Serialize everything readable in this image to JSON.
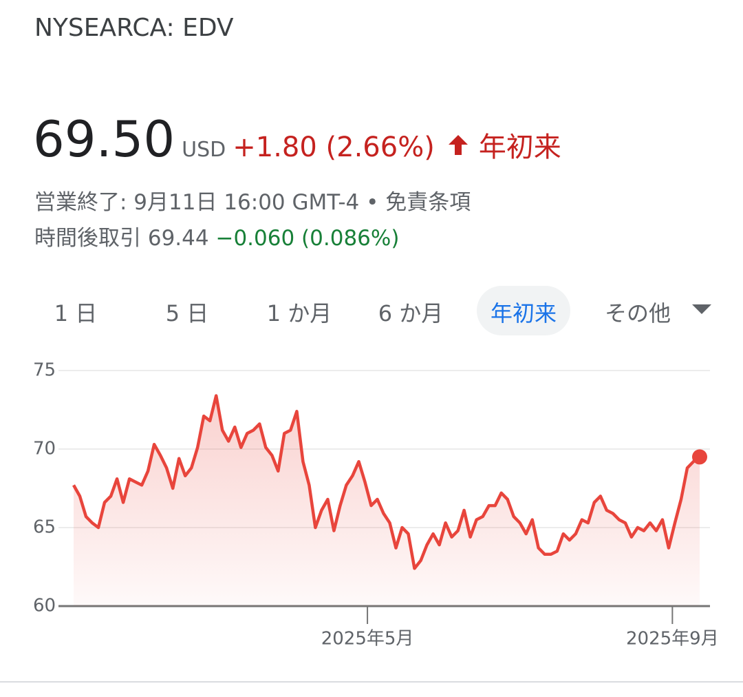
{
  "header": {
    "symbol": "NYSEARCA: EDV"
  },
  "quote": {
    "price": "69.50",
    "currency": "USD",
    "change": "+1.80 (2.66%)",
    "period": "年初来",
    "status": "営業終了: 9月11日 16:00 GMT-4",
    "separator": "•",
    "disclaimer": "免責条項"
  },
  "after_hours": {
    "label": "時間後取引",
    "price": "69.44",
    "change": "−0.060 (0.086%)"
  },
  "tabs": [
    "1 日",
    "5 日",
    "1 か月",
    "6 か月",
    "年初来",
    "その他"
  ],
  "chart_data": {
    "type": "line",
    "color": "#e8453c",
    "grid": true,
    "values": [
      67.7,
      67.0,
      65.7,
      65.3,
      65.0,
      66.6,
      67.0,
      68.1,
      66.6,
      68.1,
      67.9,
      67.7,
      68.6,
      70.3,
      69.6,
      68.8,
      67.5,
      69.4,
      68.3,
      68.8,
      70.1,
      72.1,
      71.8,
      73.4,
      71.2,
      70.5,
      71.4,
      70.1,
      71.0,
      71.2,
      71.6,
      70.1,
      69.6,
      68.6,
      71.0,
      71.2,
      72.4,
      69.2,
      67.7,
      65.0,
      66.1,
      66.8,
      64.8,
      66.4,
      67.7,
      68.3,
      69.2,
      67.9,
      66.4,
      66.8,
      65.9,
      65.3,
      63.7,
      65.0,
      64.6,
      62.4,
      62.9,
      63.9,
      64.6,
      63.9,
      65.3,
      64.4,
      64.8,
      66.1,
      64.4,
      65.5,
      65.7,
      66.4,
      66.4,
      67.2,
      66.8,
      65.7,
      65.3,
      64.6,
      65.5,
      63.7,
      63.3,
      63.3,
      63.5,
      64.6,
      64.2,
      64.6,
      65.5,
      65.3,
      66.6,
      67.0,
      66.1,
      65.9,
      65.5,
      65.3,
      64.4,
      65.0,
      64.8,
      65.3,
      64.8,
      65.5,
      63.7,
      65.3,
      66.8,
      68.8,
      69.2,
      69.5
    ],
    "xlim": [
      0,
      101
    ],
    "xticks": [
      {
        "value": 47.4,
        "label": "2025年5月"
      },
      {
        "value": 96.6,
        "label": "2025年9月"
      }
    ],
    "ylim": [
      60,
      75
    ],
    "yticks": [
      60,
      65,
      70,
      75
    ]
  }
}
